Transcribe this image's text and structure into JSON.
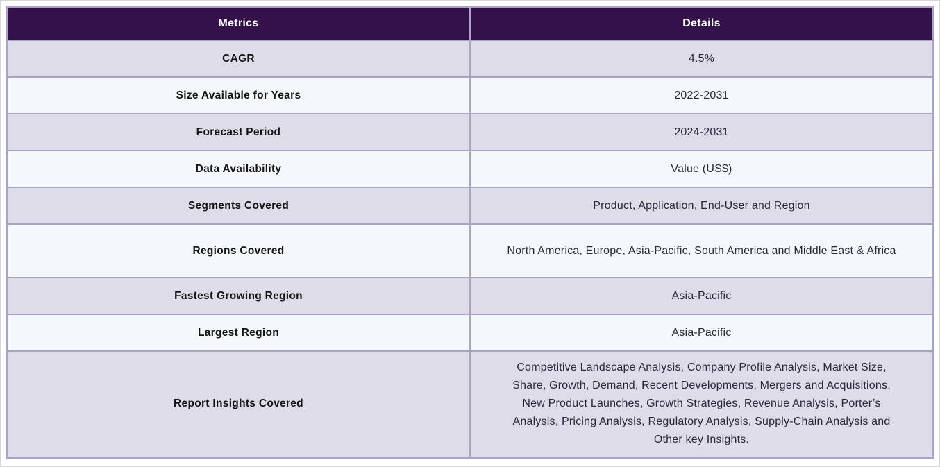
{
  "table": {
    "headers": {
      "metrics": "Metrics",
      "details": "Details"
    },
    "rows": [
      {
        "metric": "CAGR",
        "detail": "4.5%"
      },
      {
        "metric": "Size Available for Years",
        "detail": "2022-2031"
      },
      {
        "metric": "Forecast Period",
        "detail": "2024-2031"
      },
      {
        "metric": "Data Availability",
        "detail": "Value (US$)"
      },
      {
        "metric": "Segments Covered",
        "detail": "Product, Application, End-User and Region"
      },
      {
        "metric": "Regions Covered",
        "detail": "North America, Europe, Asia-Pacific, South America and Middle East & Africa"
      },
      {
        "metric": "Fastest Growing Region",
        "detail": "Asia-Pacific"
      },
      {
        "metric": "Largest Region",
        "detail": "Asia-Pacific"
      },
      {
        "metric": "Report Insights Covered",
        "detail": "Competitive Landscape Analysis, Company Profile Analysis, Market Size, Share, Growth, Demand, Recent Developments, Mergers and Acquisitions, New Product Launches, Growth Strategies, Revenue Analysis, Porter’s Analysis, Pricing Analysis, Regulatory Analysis, Supply-Chain Analysis and Other key Insights."
      }
    ],
    "colors": {
      "header_bg": "#331149",
      "header_text": "#ffffff",
      "row_lavender": "#dfdcea",
      "row_pale_blue": "#f3f8fb",
      "border": "#aba3c6",
      "metric_text": "#141414",
      "detail_text": "#28283a"
    }
  }
}
